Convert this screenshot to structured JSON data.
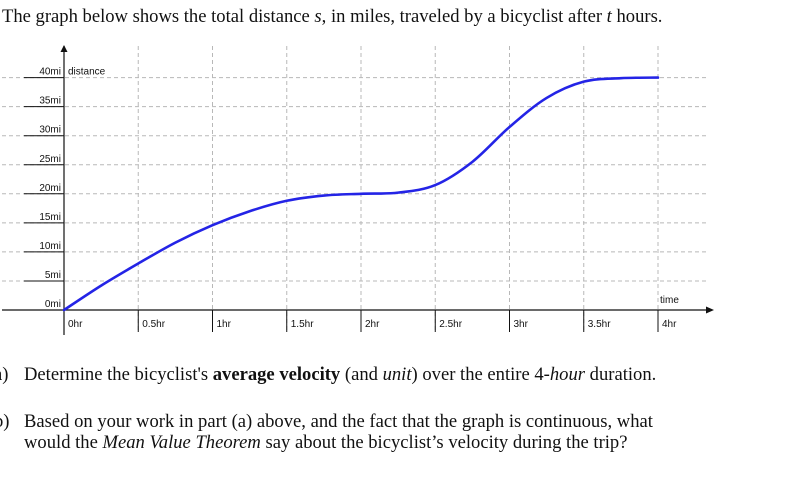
{
  "prompt": {
    "pre": "The graph below shows the total distance ",
    "var_s": "s",
    "mid": ", in miles, traveled by a bicyclist after ",
    "var_t": "t",
    "post": " hours."
  },
  "question_a": {
    "marker": "a)",
    "pre": "Determine the bicyclist's ",
    "bold": "average velocity",
    "mid": " (and ",
    "italic": "unit",
    "mid2": ") over the entire 4-",
    "italic2": "hour",
    "post": " duration."
  },
  "question_b": {
    "marker": "b)",
    "line1": "Based on your work in part (a) above, and the fact that the graph is continuous, what",
    "line2_pre": "would the ",
    "line2_italic": "Mean Value Theorem",
    "line2_post": " say about the bicyclist’s velocity during the trip?"
  },
  "chart_data": {
    "type": "line",
    "xlabel": "time",
    "ylabel": "distance",
    "xlim": [
      0,
      4.5
    ],
    "ylim": [
      0,
      42
    ],
    "grid": true,
    "x_ticks": [
      {
        "value": 0,
        "label": "0hr"
      },
      {
        "value": 0.5,
        "label": "0.5hr"
      },
      {
        "value": 1,
        "label": "1hr"
      },
      {
        "value": 1.5,
        "label": "1.5hr"
      },
      {
        "value": 2,
        "label": "2hr"
      },
      {
        "value": 2.5,
        "label": "2.5hr"
      },
      {
        "value": 3,
        "label": "3hr"
      },
      {
        "value": 3.5,
        "label": "3.5hr"
      },
      {
        "value": 4,
        "label": "4hr"
      }
    ],
    "y_ticks": [
      {
        "value": 0,
        "label": "0mi"
      },
      {
        "value": 5,
        "label": "5mi"
      },
      {
        "value": 10,
        "label": "10mi"
      },
      {
        "value": 15,
        "label": "15mi"
      },
      {
        "value": 20,
        "label": "20mi"
      },
      {
        "value": 25,
        "label": "25mi"
      },
      {
        "value": 30,
        "label": "30mi"
      },
      {
        "value": 35,
        "label": "35mi"
      },
      {
        "value": 40,
        "label": "40mi"
      }
    ],
    "line_color": "#2424e6",
    "series": [
      {
        "x": [
          0,
          0.25,
          0.5,
          0.75,
          1,
          1.25,
          1.5,
          1.75,
          2,
          2.25,
          2.5,
          2.75,
          3,
          3.25,
          3.5,
          3.75,
          4
        ],
        "values": [
          0,
          4.2,
          8.0,
          11.6,
          14.6,
          17.0,
          18.8,
          19.7,
          20.0,
          20.2,
          21.5,
          25.5,
          31.5,
          36.5,
          39.3,
          39.9,
          40.0
        ]
      }
    ]
  }
}
